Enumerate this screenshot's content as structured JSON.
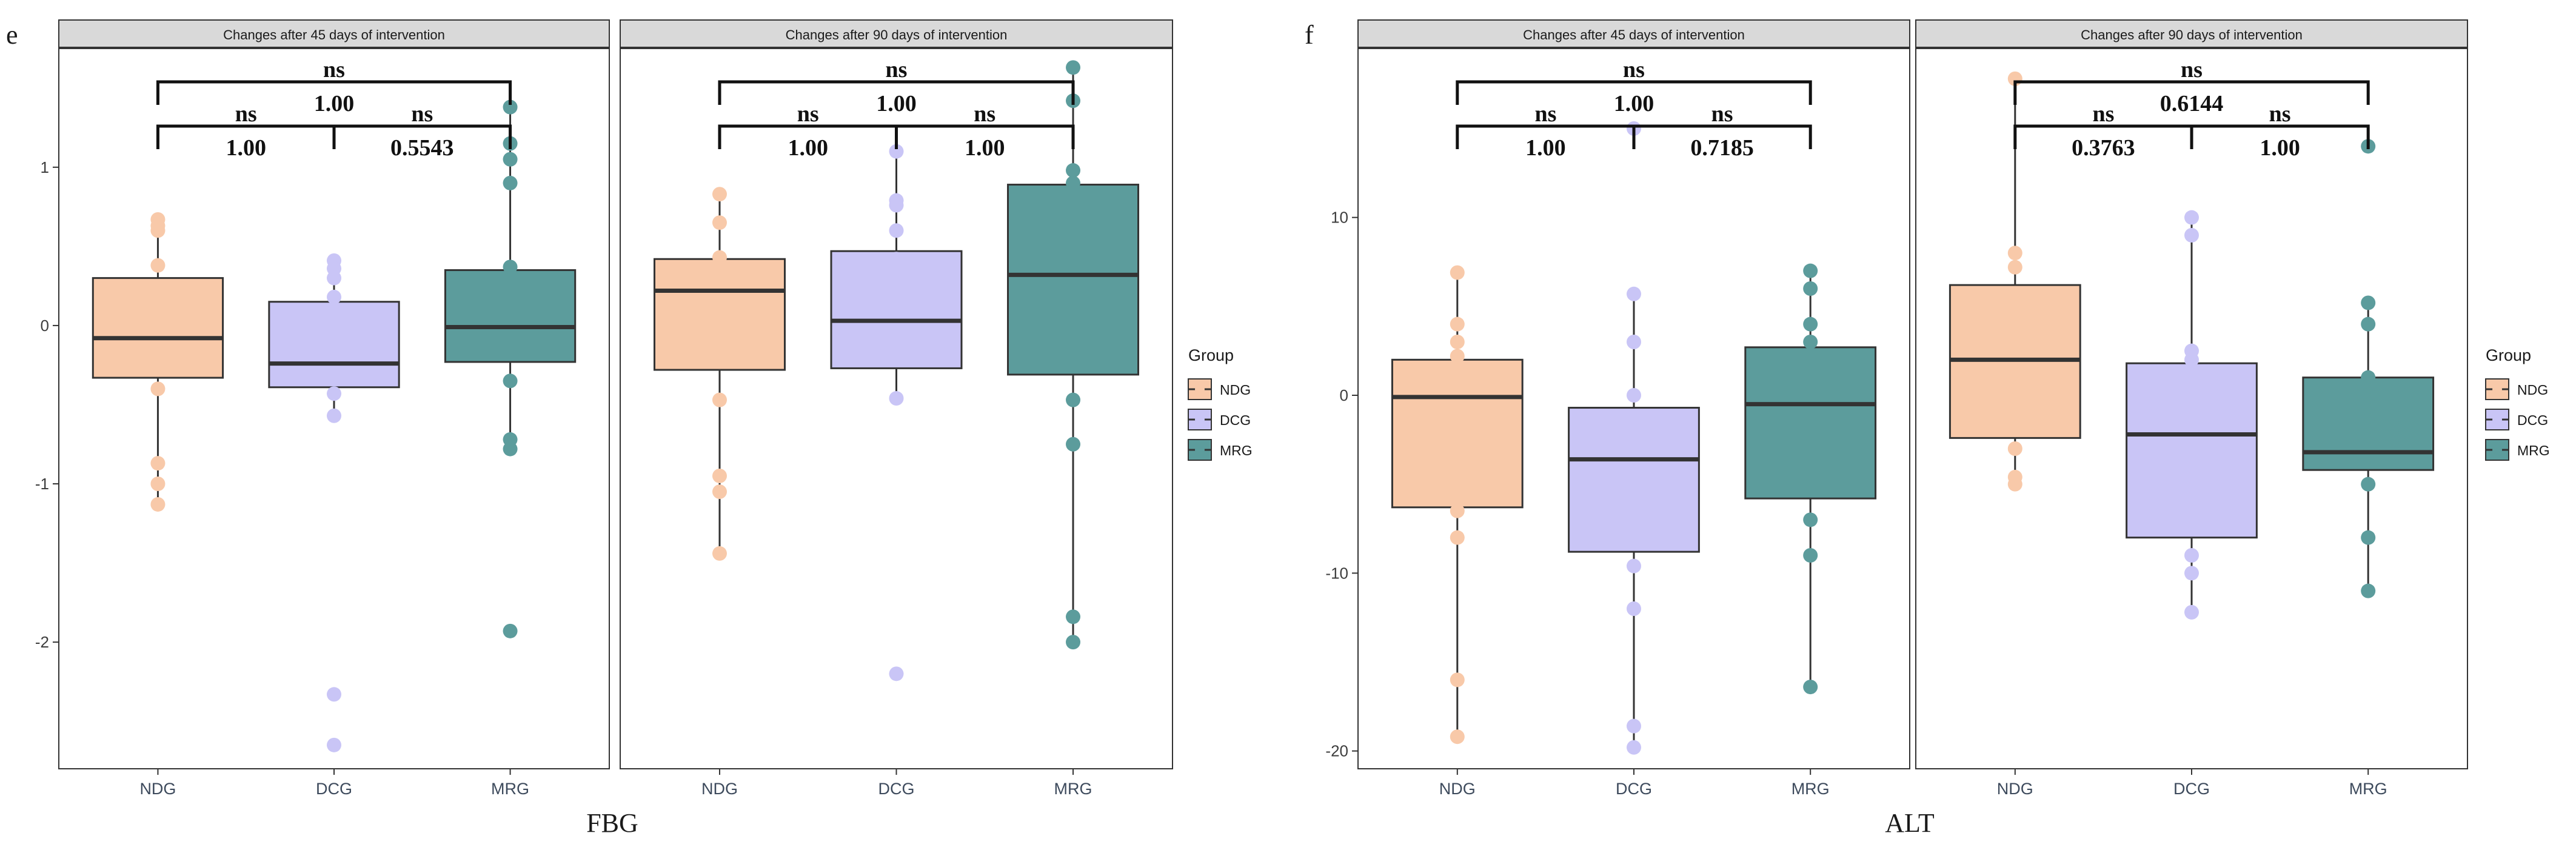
{
  "chart_data": [
    {
      "panel": "e",
      "type": "box",
      "xlabel": "FBG",
      "ylim": [
        -2.8,
        1.75
      ],
      "yticks": [
        -2,
        -1,
        0,
        1
      ],
      "categories": [
        "NDG",
        "DCG",
        "MRG"
      ],
      "legend": {
        "title": "Group",
        "position": "right",
        "entries": [
          {
            "name": "NDG",
            "color": "#F8C9A9"
          },
          {
            "name": "DCG",
            "color": "#C9C5F6"
          },
          {
            "name": "MRG",
            "color": "#5C9C9C"
          }
        ]
      },
      "facets": [
        {
          "title": "Changes after 45 days of intervention",
          "boxes": [
            {
              "group": "NDG",
              "q1": -0.33,
              "median": -0.08,
              "q3": 0.3,
              "whisker_low": -1.13,
              "whisker_high": 0.67,
              "points": [
                0.67,
                0.63,
                0.6,
                0.38,
                -0.08,
                -0.4,
                -0.87,
                -1.0,
                -1.13
              ]
            },
            {
              "group": "DCG",
              "q1": -0.39,
              "median": -0.24,
              "q3": 0.15,
              "whisker_low": -0.57,
              "whisker_high": 0.41,
              "points": [
                0.41,
                0.36,
                0.3,
                0.18,
                -0.12,
                -0.24,
                -0.43,
                -0.57,
                -2.33,
                -2.65
              ]
            },
            {
              "group": "MRG",
              "q1": -0.23,
              "median": -0.01,
              "q3": 0.35,
              "whisker_low": -0.78,
              "whisker_high": 1.38,
              "points": [
                1.38,
                1.15,
                1.05,
                0.9,
                0.37,
                -0.02,
                -0.35,
                -0.72,
                -0.78,
                -1.93
              ]
            }
          ],
          "comparisons": [
            {
              "groups": [
                "NDG",
                "MRG"
              ],
              "label": "ns",
              "p": "1.00"
            },
            {
              "groups": [
                "NDG",
                "DCG"
              ],
              "label": "ns",
              "p": "1.00"
            },
            {
              "groups": [
                "DCG",
                "MRG"
              ],
              "label": "ns",
              "p": "0.5543"
            }
          ]
        },
        {
          "title": "Changes after 90 days of intervention",
          "boxes": [
            {
              "group": "NDG",
              "q1": -0.28,
              "median": 0.22,
              "q3": 0.42,
              "whisker_low": -1.44,
              "whisker_high": 0.83,
              "points": [
                0.83,
                0.65,
                0.43,
                0.22,
                -0.47,
                -0.95,
                -1.05,
                -1.44
              ]
            },
            {
              "group": "DCG",
              "q1": -0.27,
              "median": 0.03,
              "q3": 0.47,
              "whisker_low": -0.46,
              "whisker_high": 1.1,
              "points": [
                1.1,
                0.79,
                0.76,
                0.6,
                0.42,
                -0.46,
                -2.2
              ]
            },
            {
              "group": "MRG",
              "q1": -0.31,
              "median": 0.32,
              "q3": 0.89,
              "whisker_low": -2.0,
              "whisker_high": 1.63,
              "points": [
                1.63,
                1.42,
                0.98,
                0.9,
                -0.47,
                -0.75,
                -1.84,
                -2.0
              ]
            }
          ],
          "comparisons": [
            {
              "groups": [
                "NDG",
                "MRG"
              ],
              "label": "ns",
              "p": "1.00"
            },
            {
              "groups": [
                "NDG",
                "DCG"
              ],
              "label": "ns",
              "p": "1.00"
            },
            {
              "groups": [
                "DCG",
                "MRG"
              ],
              "label": "ns",
              "p": "1.00"
            }
          ]
        }
      ]
    },
    {
      "panel": "f",
      "type": "box",
      "xlabel": "ALT",
      "ylim": [
        -21,
        19.5
      ],
      "yticks": [
        -20,
        -10,
        0,
        10
      ],
      "categories": [
        "NDG",
        "DCG",
        "MRG"
      ],
      "legend": {
        "title": "Group",
        "position": "right",
        "entries": [
          {
            "name": "NDG",
            "color": "#F8C9A9"
          },
          {
            "name": "DCG",
            "color": "#C9C5F6"
          },
          {
            "name": "MRG",
            "color": "#5C9C9C"
          }
        ]
      },
      "facets": [
        {
          "title": "Changes after 45 days of intervention",
          "boxes": [
            {
              "group": "NDG",
              "q1": -6.3,
              "median": -0.1,
              "q3": 2.0,
              "whisker_low": -19.2,
              "whisker_high": 6.9,
              "points": [
                6.9,
                4.0,
                3.0,
                2.2,
                -6.5,
                -8.0,
                -16.0,
                -19.2
              ]
            },
            {
              "group": "DCG",
              "q1": -8.8,
              "median": -3.6,
              "q3": -0.7,
              "whisker_low": -19.8,
              "whisker_high": 5.7,
              "points": [
                15.0,
                5.7,
                3.0,
                0.0,
                -9.6,
                -12.0,
                -18.6,
                -19.8
              ]
            },
            {
              "group": "MRG",
              "q1": -5.8,
              "median": -0.5,
              "q3": 2.7,
              "whisker_low": -16.4,
              "whisker_high": 7.0,
              "points": [
                7.0,
                6.0,
                4.0,
                3.0,
                -7.0,
                -9.0,
                -16.4
              ]
            }
          ],
          "comparisons": [
            {
              "groups": [
                "NDG",
                "MRG"
              ],
              "label": "ns",
              "p": "1.00"
            },
            {
              "groups": [
                "NDG",
                "DCG"
              ],
              "label": "ns",
              "p": "1.00"
            },
            {
              "groups": [
                "DCG",
                "MRG"
              ],
              "label": "ns",
              "p": "0.7185"
            }
          ]
        },
        {
          "title": "Changes after 90 days of intervention",
          "boxes": [
            {
              "group": "NDG",
              "q1": -2.4,
              "median": 2.0,
              "q3": 6.2,
              "whisker_low": -5.0,
              "whisker_high": 17.8,
              "points": [
                17.8,
                8.0,
                7.2,
                -3.0,
                -4.6,
                -5.0
              ]
            },
            {
              "group": "DCG",
              "q1": -8.0,
              "median": -2.2,
              "q3": 1.8,
              "whisker_low": -12.2,
              "whisker_high": 10.0,
              "points": [
                10.0,
                9.0,
                2.5,
                2.0,
                -9.0,
                -10.0,
                -12.2
              ]
            },
            {
              "group": "MRG",
              "q1": -4.2,
              "median": -3.2,
              "q3": 1.0,
              "whisker_low": -11.0,
              "whisker_high": 5.2,
              "points": [
                14.0,
                5.2,
                4.0,
                1.0,
                -5.0,
                -8.0,
                -11.0
              ]
            }
          ],
          "comparisons": [
            {
              "groups": [
                "NDG",
                "MRG"
              ],
              "label": "ns",
              "p": "0.6144"
            },
            {
              "groups": [
                "NDG",
                "DCG"
              ],
              "label": "ns",
              "p": "0.3763"
            },
            {
              "groups": [
                "DCG",
                "MRG"
              ],
              "label": "ns",
              "p": "1.00"
            }
          ]
        }
      ]
    }
  ]
}
